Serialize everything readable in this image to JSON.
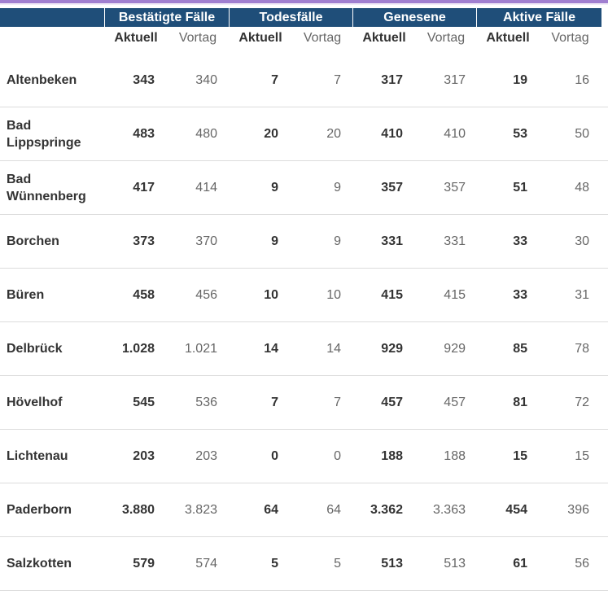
{
  "groups": [
    "Bestätigte Fälle",
    "Todesfälle",
    "Genesene",
    "Aktive Fälle"
  ],
  "subheaders": {
    "current": "Aktuell",
    "previous": "Vortag"
  },
  "rows": [
    {
      "name": "Altenbeken",
      "v": [
        "343",
        "340",
        "7",
        "7",
        "317",
        "317",
        "19",
        "16"
      ]
    },
    {
      "name": "Bad Lippspringe",
      "v": [
        "483",
        "480",
        "20",
        "20",
        "410",
        "410",
        "53",
        "50"
      ]
    },
    {
      "name": "Bad Wünnenberg",
      "v": [
        "417",
        "414",
        "9",
        "9",
        "357",
        "357",
        "51",
        "48"
      ]
    },
    {
      "name": "Borchen",
      "v": [
        "373",
        "370",
        "9",
        "9",
        "331",
        "331",
        "33",
        "30"
      ]
    },
    {
      "name": "Büren",
      "v": [
        "458",
        "456",
        "10",
        "10",
        "415",
        "415",
        "33",
        "31"
      ]
    },
    {
      "name": "Delbrück",
      "v": [
        "1.028",
        "1.021",
        "14",
        "14",
        "929",
        "929",
        "85",
        "78"
      ]
    },
    {
      "name": "Hövelhof",
      "v": [
        "545",
        "536",
        "7",
        "7",
        "457",
        "457",
        "81",
        "72"
      ]
    },
    {
      "name": "Lichtenau",
      "v": [
        "203",
        "203",
        "0",
        "0",
        "188",
        "188",
        "15",
        "15"
      ]
    },
    {
      "name": "Paderborn",
      "v": [
        "3.880",
        "3.823",
        "64",
        "64",
        "3.362",
        "3.363",
        "454",
        "396"
      ]
    },
    {
      "name": "Salzkotten",
      "v": [
        "579",
        "574",
        "5",
        "5",
        "513",
        "513",
        "61",
        "56"
      ]
    }
  ]
}
